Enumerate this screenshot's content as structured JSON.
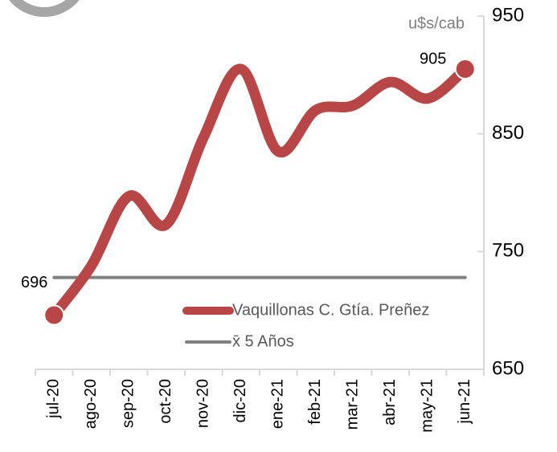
{
  "chart_data": {
    "type": "line",
    "y_axis_label": "u$s/cab",
    "categories": [
      "jul-20",
      "ago-20",
      "sep-20",
      "oct-20",
      "nov-20",
      "dic-20",
      "ene-21",
      "feb-21",
      "mar-21",
      "abr-21",
      "may-21",
      "jun-21"
    ],
    "series": [
      {
        "name": "Vaquillonas C. Gtía. Preñez",
        "color": "#b94646",
        "values": [
          696,
          738,
          797,
          773,
          847,
          905,
          835,
          870,
          874,
          894,
          880,
          905
        ]
      },
      {
        "name": "x̄ 5 Años",
        "color": "#808080",
        "values": [
          728,
          728,
          728,
          728,
          728,
          728,
          728,
          728,
          728,
          728,
          728,
          728
        ]
      }
    ],
    "ylim": [
      650,
      950
    ],
    "yticks": [
      650,
      750,
      850,
      950
    ],
    "legend": "lower right"
  }
}
